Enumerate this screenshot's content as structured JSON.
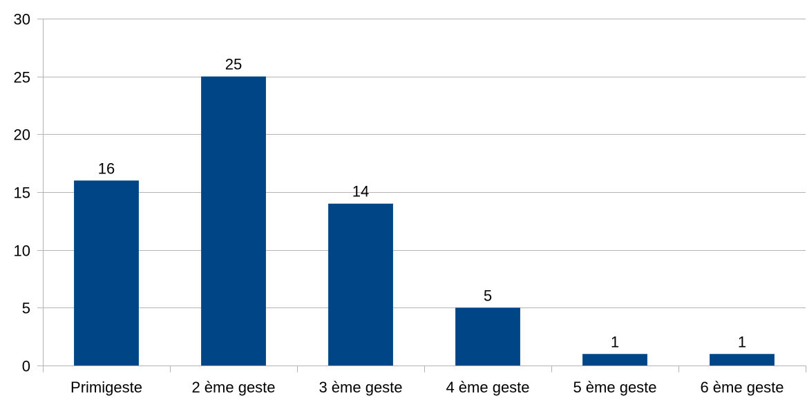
{
  "chart_data": {
    "type": "bar",
    "title": "",
    "xlabel": "",
    "ylabel": "",
    "categories": [
      "Primigeste",
      "2 ème geste",
      "3 ème geste",
      "4 ème geste",
      "5 ème geste",
      "6 ème geste"
    ],
    "values": [
      16,
      25,
      14,
      5,
      1,
      1
    ],
    "ylim": [
      0,
      30
    ],
    "yticks": [
      0,
      5,
      10,
      15,
      20,
      25,
      30
    ],
    "grid": true,
    "legend": "none",
    "data_labels": true,
    "colors": {
      "bar": "#004586",
      "grid": "#b3b3b3",
      "axis": "#b3b3b3"
    }
  }
}
